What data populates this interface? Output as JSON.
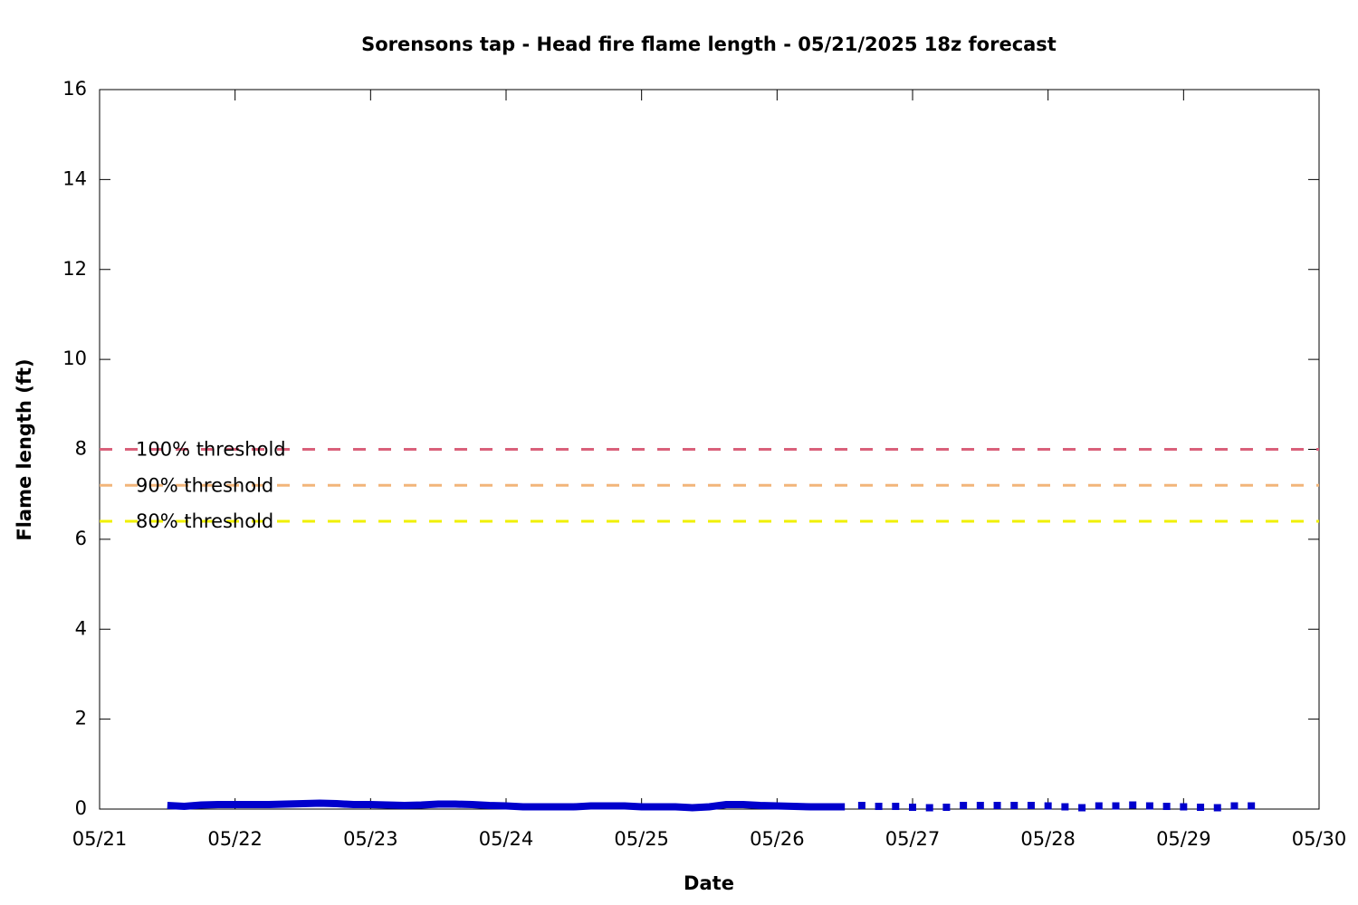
{
  "chart_data": {
    "type": "line",
    "title": "Sorensons tap - Head fire flame length - 05/21/2025 18z forecast",
    "x_label": "Date",
    "y_label": "Flame length (ft)",
    "xlim": [
      0,
      9
    ],
    "xticks": [
      {
        "value": 0,
        "label": "05/21"
      },
      {
        "value": 1,
        "label": "05/22"
      },
      {
        "value": 2,
        "label": "05/23"
      },
      {
        "value": 3,
        "label": "05/24"
      },
      {
        "value": 4,
        "label": "05/25"
      },
      {
        "value": 5,
        "label": "05/26"
      },
      {
        "value": 6,
        "label": "05/27"
      },
      {
        "value": 7,
        "label": "05/28"
      },
      {
        "value": 8,
        "label": "05/29"
      },
      {
        "value": 9,
        "label": "05/30"
      }
    ],
    "ylim": [
      0,
      16
    ],
    "yticks": [
      0,
      2,
      4,
      6,
      8,
      10,
      12,
      14,
      16
    ],
    "series": [
      {
        "color": "#0000cc",
        "style": "line",
        "x": [
          0.5,
          0.625,
          0.75,
          0.875,
          1,
          1.125,
          1.25,
          1.375,
          1.5,
          1.625,
          1.75,
          1.875,
          2,
          2.125,
          2.25,
          2.375,
          2.5,
          2.625,
          2.75,
          2.875,
          3,
          3.125,
          3.25,
          3.375,
          3.5,
          3.625,
          3.75,
          3.875,
          4,
          4.125,
          4.25,
          4.375,
          4.5,
          4.625,
          4.75,
          4.875,
          5,
          5.125,
          5.25,
          5.375,
          5.5
        ],
        "values": [
          0.08,
          0.06,
          0.09,
          0.1,
          0.1,
          0.1,
          0.1,
          0.11,
          0.12,
          0.13,
          0.12,
          0.1,
          0.1,
          0.09,
          0.08,
          0.09,
          0.11,
          0.11,
          0.1,
          0.08,
          0.07,
          0.05,
          0.05,
          0.05,
          0.05,
          0.07,
          0.07,
          0.07,
          0.05,
          0.05,
          0.05,
          0.03,
          0.05,
          0.1,
          0.1,
          0.08,
          0.07,
          0.06,
          0.05,
          0.05,
          0.05
        ]
      },
      {
        "color": "#0000cc",
        "style": "points",
        "x": [
          5.625,
          5.75,
          5.875,
          6,
          6.125,
          6.25,
          6.375,
          6.5,
          6.625,
          6.75,
          6.875,
          7,
          7.125,
          7.25,
          7.375,
          7.5,
          7.625,
          7.75,
          7.875,
          8,
          8.125,
          8.25,
          8.375,
          8.5
        ],
        "values": [
          0.08,
          0.06,
          0.06,
          0.04,
          0.03,
          0.04,
          0.08,
          0.08,
          0.08,
          0.08,
          0.08,
          0.07,
          0.05,
          0.03,
          0.07,
          0.07,
          0.09,
          0.07,
          0.06,
          0.05,
          0.04,
          0.03,
          0.07,
          0.07
        ]
      }
    ],
    "thresholds": [
      {
        "name": "100% threshold",
        "value": 8,
        "color": "#d9607a"
      },
      {
        "name": "90% threshold",
        "value": 7.2,
        "color": "#f2b57a"
      },
      {
        "name": "80% threshold",
        "value": 6.4,
        "color": "#f0f000"
      }
    ]
  }
}
